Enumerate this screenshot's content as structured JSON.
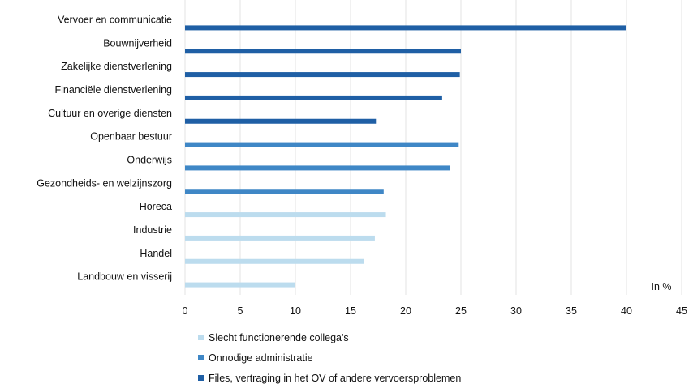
{
  "chart_data": {
    "type": "bar",
    "orientation": "horizontal",
    "unit_label": "In %",
    "xlim": [
      0,
      45
    ],
    "x_ticks": [
      "0",
      "5",
      "10",
      "15",
      "20",
      "25",
      "30",
      "35",
      "40",
      "45"
    ],
    "grid": "vertical",
    "legend_position": "bottom",
    "categories": [
      "Vervoer en communicatie",
      "Bouwnijverheid",
      "Zakelijke dienstverlening",
      "Financiële dienstverlening",
      "Cultuur en overige diensten",
      "Openbaar bestuur",
      "Onderwijs",
      "Gezondheids- en welzijnszorg",
      "Horeca",
      "Industrie",
      "Handel",
      "Landbouw en visserij"
    ],
    "bars": [
      {
        "category": "Vervoer en communicatie",
        "value": 40.0,
        "series": 2
      },
      {
        "category": "Bouwnijverheid",
        "value": 25.0,
        "series": 2
      },
      {
        "category": "Zakelijke dienstverlening",
        "value": 24.9,
        "series": 2
      },
      {
        "category": "Financiële dienstverlening",
        "value": 23.3,
        "series": 2
      },
      {
        "category": "Cultuur en overige diensten",
        "value": 17.3,
        "series": 2
      },
      {
        "category": "Openbaar bestuur",
        "value": 24.8,
        "series": 1
      },
      {
        "category": "Onderwijs",
        "value": 24.0,
        "series": 1
      },
      {
        "category": "Gezondheids- en welzijnszorg",
        "value": 18.0,
        "series": 1
      },
      {
        "category": "Horeca",
        "value": 18.2,
        "series": 0
      },
      {
        "category": "Industrie",
        "value": 17.2,
        "series": 0
      },
      {
        "category": "Handel",
        "value": 16.2,
        "series": 0
      },
      {
        "category": "Landbouw en visserij",
        "value": 10.0,
        "series": 0
      }
    ],
    "series": [
      {
        "name": "Slecht functionerende collega's",
        "color": "#bcdcee"
      },
      {
        "name": "Onnodige administratie",
        "color": "#3f87c6"
      },
      {
        "name": "Files, vertraging in het OV of andere vervoersproblemen",
        "color": "#1f5fa5"
      }
    ]
  }
}
